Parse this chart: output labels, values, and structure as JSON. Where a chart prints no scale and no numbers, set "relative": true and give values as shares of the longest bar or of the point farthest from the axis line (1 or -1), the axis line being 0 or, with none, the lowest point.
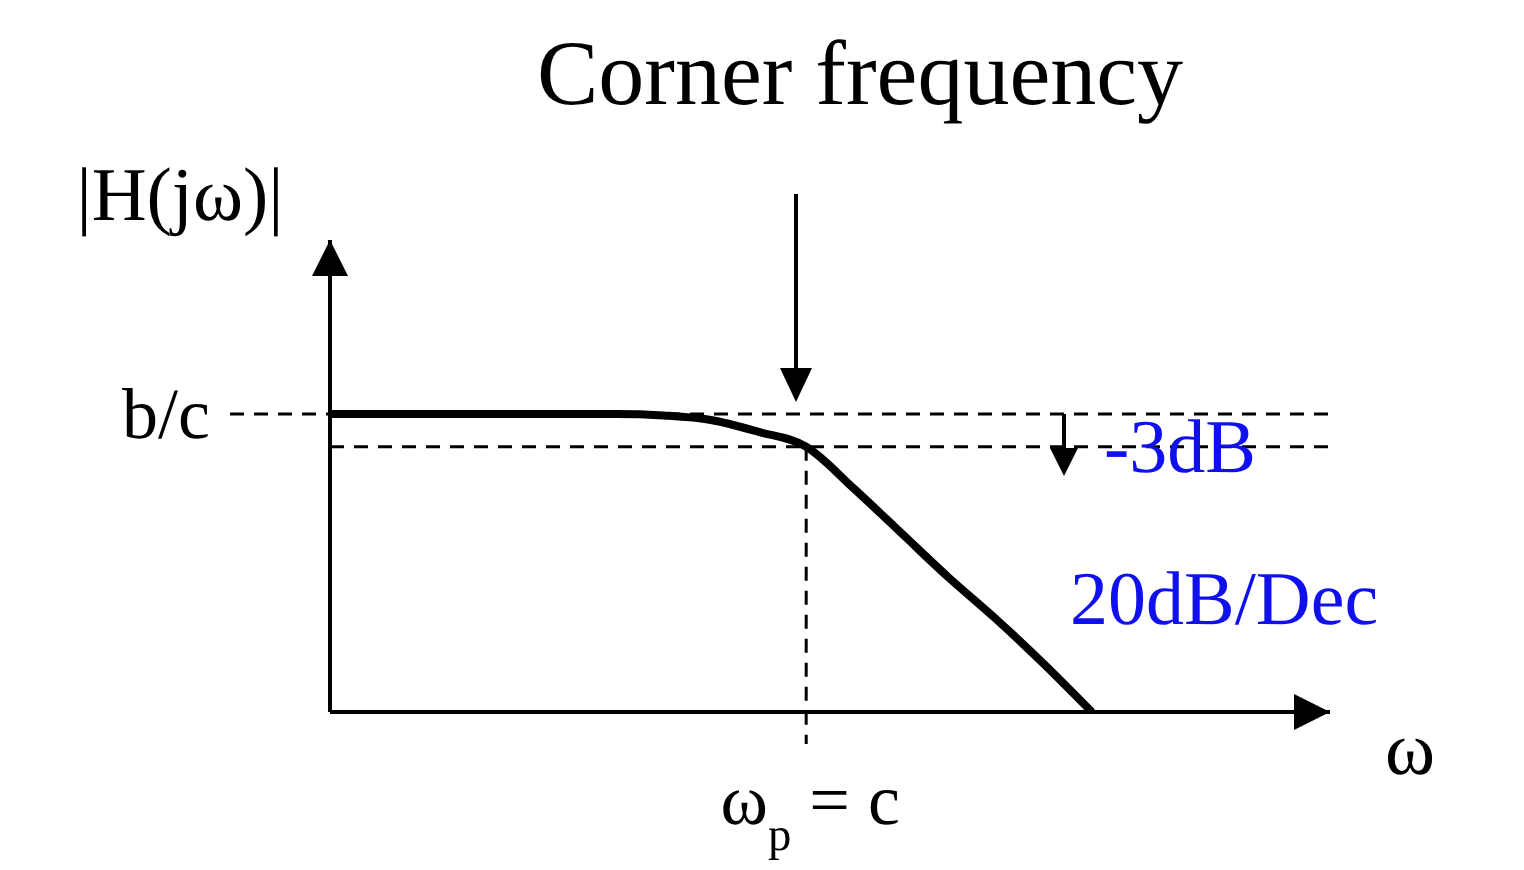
{
  "chart_data": {
    "type": "line",
    "title": "Corner frequency",
    "ylabel": "|H(jω)|",
    "xlabel": "ω",
    "relative": true,
    "categories": [
      null,
      null,
      null,
      null,
      null,
      null,
      null,
      null,
      null,
      null,
      null,
      null,
      null,
      null,
      null,
      null,
      null,
      null,
      null,
      null,
      null,
      null
    ],
    "series": [
      {
        "color": "#000000",
        "values": [
          1,
          1,
          1,
          1,
          1,
          1,
          1,
          0.995,
          0.98,
          0.94,
          0.89,
          0.75,
          0.6,
          0.45,
          0.31,
          0.16,
          0,
          null,
          null,
          null,
          null,
          null
        ]
      }
    ],
    "ref_lines": [
      {
        "axis": "y",
        "value": 1,
        "label": "b/c",
        "line_style": "dashed",
        "color": "#000000"
      },
      {
        "axis": "y",
        "value": 0.89,
        "line_style": "dashed",
        "color": "#000000"
      }
    ],
    "annotations": [
      "ω$_{p}$ = c",
      "-3dB",
      "20dB/Dec"
    ],
    "marker": "none",
    "line_style": "solid"
  }
}
